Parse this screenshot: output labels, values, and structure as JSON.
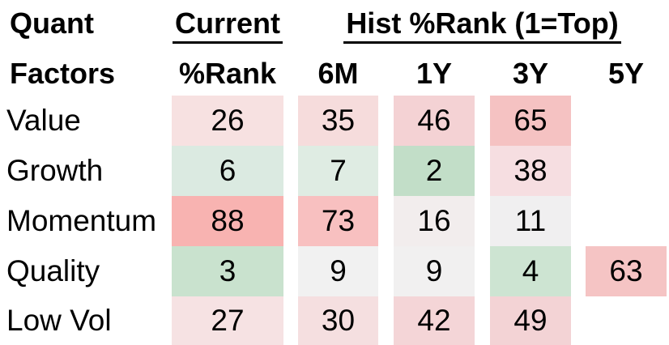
{
  "header": {
    "corner_line1": "Quant",
    "corner_line2": "Factors",
    "current_group": "Current",
    "hist_group": "Hist %Rank (1=Top)",
    "sub_columns": [
      "%Rank",
      "6M",
      "1Y",
      "3Y",
      "5Y"
    ]
  },
  "colors": {
    "text": "#000000",
    "background": "#ffffff",
    "underline": "#000000"
  },
  "chart_data": {
    "type": "heatmap",
    "row_header": "Quant Factors",
    "columns": [
      "Current %Rank",
      "6M",
      "1Y",
      "3Y",
      "5Y"
    ],
    "scale_note": "1=Top",
    "color_scale_hint": "green = low rank (top), white = mid, red/pink = high rank",
    "rows": [
      {
        "label": "Value",
        "values": [
          26,
          35,
          46,
          65,
          null
        ],
        "colors": [
          "#f7e1e1",
          "#f6dcdc",
          "#f4d2d4",
          "#f5c2c2",
          null
        ]
      },
      {
        "label": "Growth",
        "values": [
          6,
          7,
          2,
          38,
          null
        ],
        "colors": [
          "#dbeae1",
          "#dfece3",
          "#c2dec8",
          "#f6dee1",
          null
        ]
      },
      {
        "label": "Momentum",
        "values": [
          88,
          73,
          16,
          11,
          null
        ],
        "colors": [
          "#f8b3b1",
          "#f8c0c0",
          "#f2eded",
          "#f0eff0",
          null
        ]
      },
      {
        "label": "Quality",
        "values": [
          3,
          9,
          9,
          4,
          63
        ],
        "colors": [
          "#c9e2ce",
          "#f1f1f1",
          "#f1f0f0",
          "#cde4d2",
          "#f5c4c4"
        ]
      },
      {
        "label": "Low Vol",
        "values": [
          27,
          30,
          42,
          49,
          null
        ],
        "colors": [
          "#f6e2e3",
          "#f5dfe0",
          "#f4d5d7",
          "#f3d3d5",
          null
        ]
      }
    ]
  }
}
